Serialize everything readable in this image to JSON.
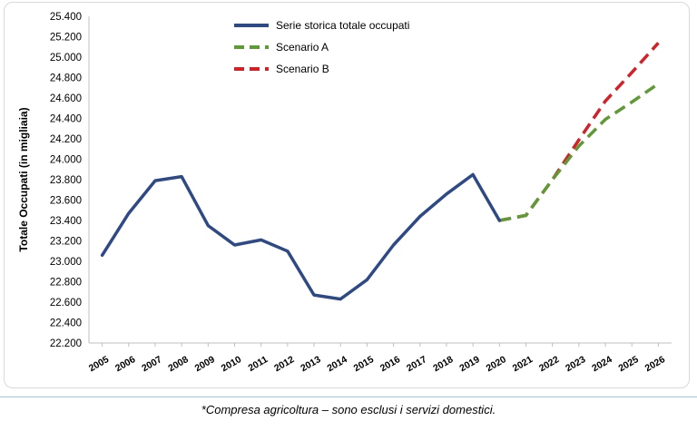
{
  "footnote": "*Compresa agricoltura – sono esclusi i servizi domestici.",
  "chart_data": {
    "type": "line",
    "title": "",
    "xlabel": "",
    "ylabel": "Totale Occupati (in migliaia)",
    "categories": [
      "2005",
      "2006",
      "2007",
      "2008",
      "2009",
      "2010",
      "2011",
      "2012",
      "2013",
      "2014",
      "2015",
      "2016",
      "2017",
      "2018",
      "2019",
      "2020",
      "2021",
      "2022",
      "2023",
      "2024",
      "2025",
      "2026"
    ],
    "y_ticks": [
      "22.200",
      "22.400",
      "22.600",
      "22.800",
      "23.000",
      "23.200",
      "23.400",
      "23.600",
      "23.800",
      "24.000",
      "24.200",
      "24.400",
      "24.600",
      "24.800",
      "25.000",
      "25.200",
      "25.400"
    ],
    "ylim": [
      22200,
      25400
    ],
    "grid": false,
    "legend_position": "top-left",
    "series": [
      {
        "name": "Serie storica totale occupati",
        "color": "#2e4a86",
        "dash": false,
        "values": [
          23060,
          23470,
          23790,
          23830,
          23350,
          23160,
          23210,
          23100,
          22670,
          22630,
          22820,
          23160,
          23440,
          23660,
          23850,
          23400,
          null,
          null,
          null,
          null,
          null,
          null
        ]
      },
      {
        "name": "Scenario A",
        "color": "#5e9a35",
        "dash": true,
        "values": [
          null,
          null,
          null,
          null,
          null,
          null,
          null,
          null,
          null,
          null,
          null,
          null,
          null,
          null,
          null,
          23400,
          23450,
          23800,
          24130,
          24390,
          24560,
          24740
        ]
      },
      {
        "name": "Scenario B",
        "color": "#d42027",
        "dash": true,
        "values": [
          null,
          null,
          null,
          null,
          null,
          null,
          null,
          null,
          null,
          null,
          null,
          null,
          null,
          null,
          null,
          23400,
          23450,
          23800,
          24190,
          24570,
          24850,
          25140
        ]
      }
    ]
  }
}
